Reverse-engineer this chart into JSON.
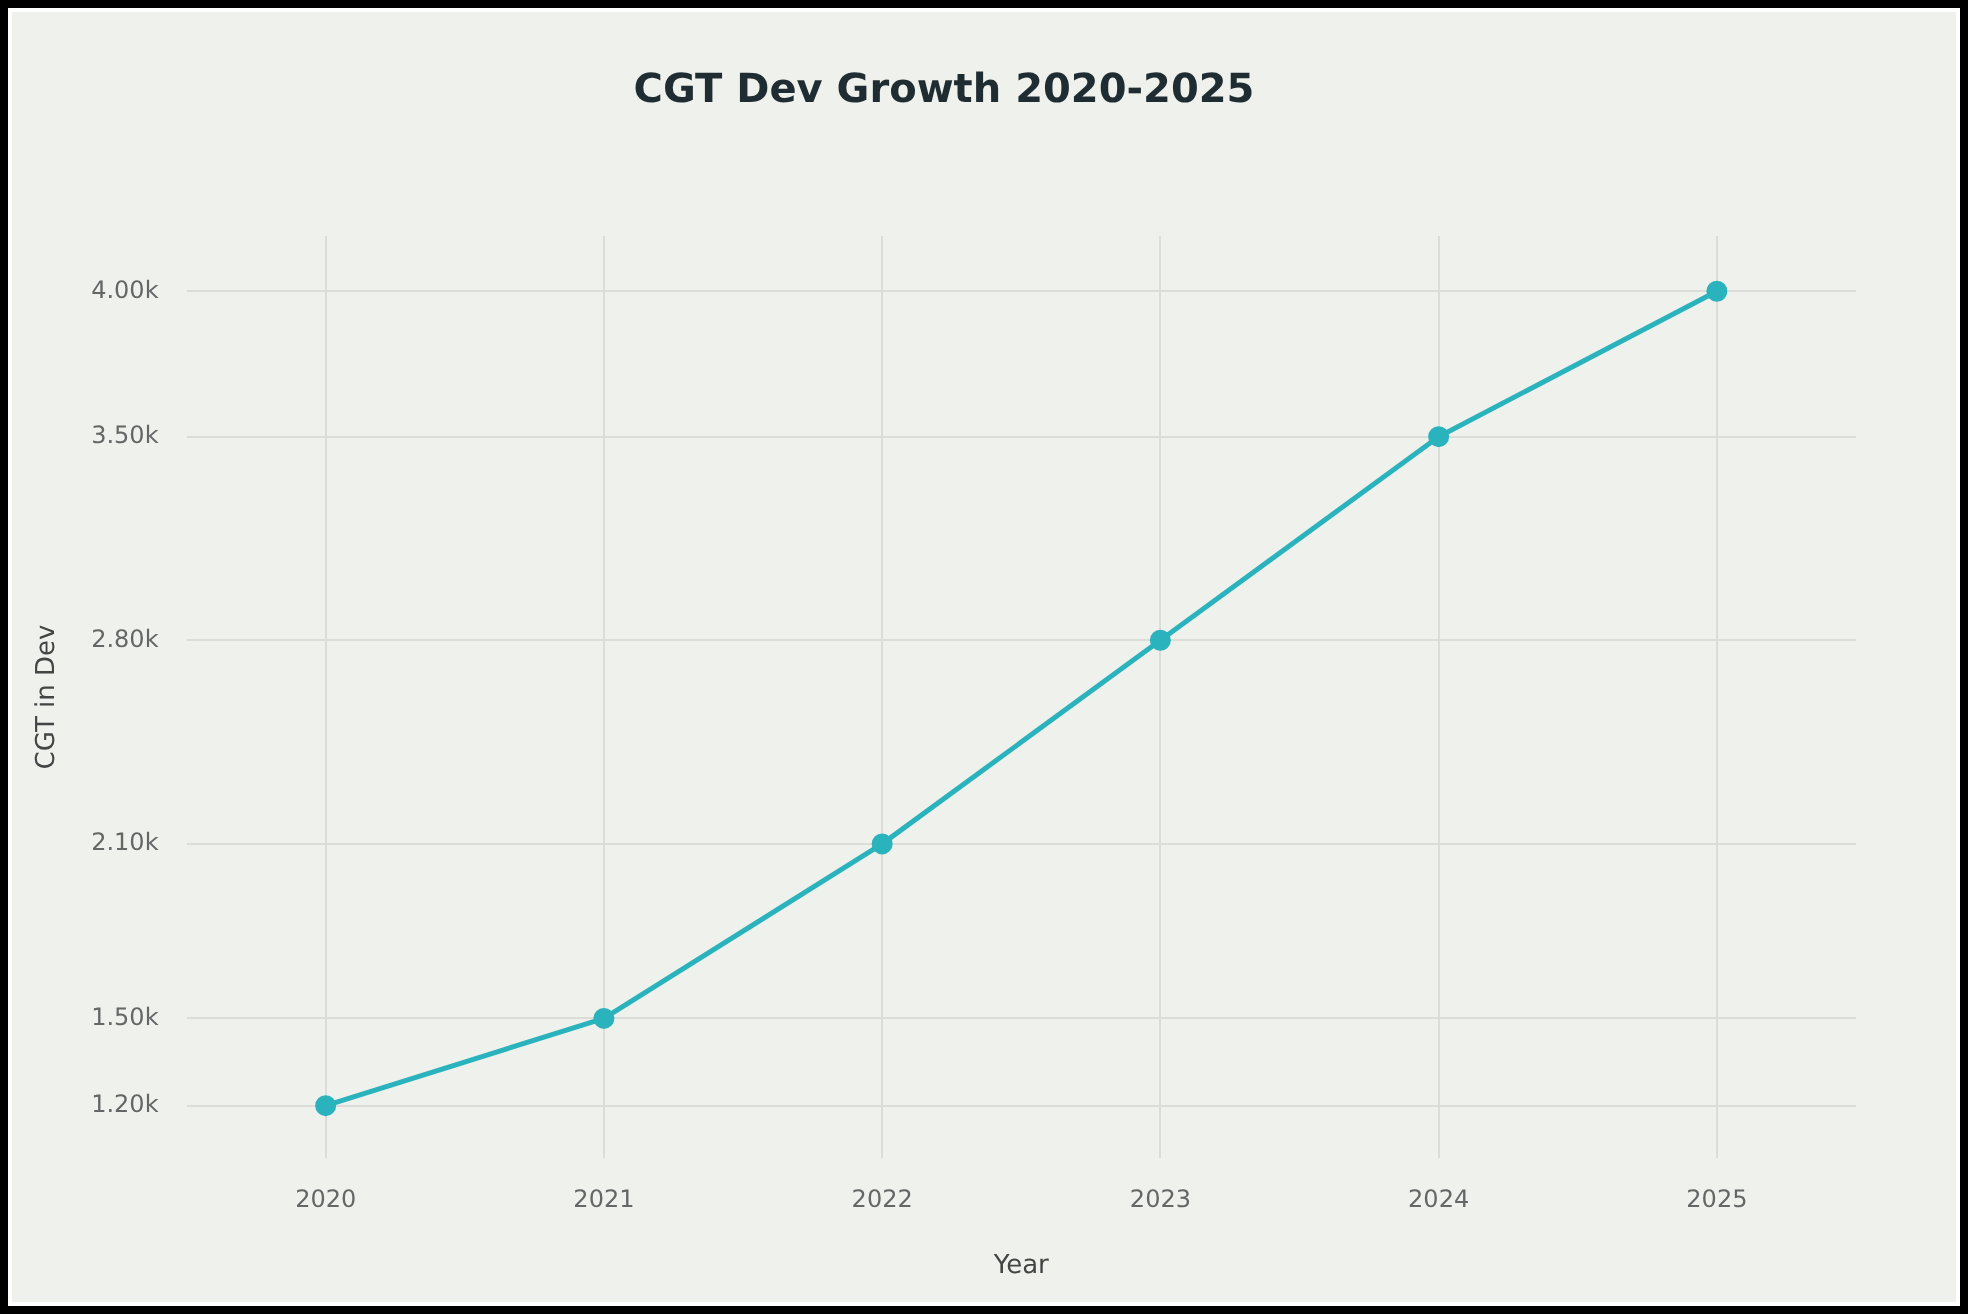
{
  "chart_data": {
    "type": "line",
    "title": "CGT Dev Growth 2020-2025",
    "xlabel": "Year",
    "ylabel": "CGT in Dev",
    "categories": [
      "2020",
      "2021",
      "2022",
      "2023",
      "2024",
      "2025"
    ],
    "series": [
      {
        "color": "#2ab3bd",
        "values": [
          1200,
          1500,
          2100,
          2800,
          3500,
          4000
        ]
      }
    ],
    "ylim": [
      1020,
      4190
    ],
    "yticks": [
      {
        "value": 1200,
        "label": "1.20k"
      },
      {
        "value": 1500,
        "label": "1.50k"
      },
      {
        "value": 2100,
        "label": "2.10k"
      },
      {
        "value": 2800,
        "label": "2.80k"
      },
      {
        "value": 3500,
        "label": "3.50k"
      },
      {
        "value": 4000,
        "label": "4.00k"
      }
    ],
    "grid": true,
    "marker": "circle",
    "line_style": "solid",
    "legend": false
  }
}
